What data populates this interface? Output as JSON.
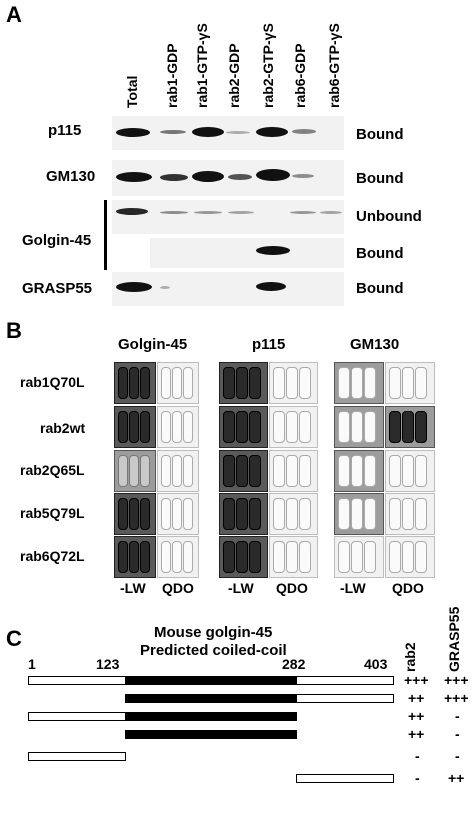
{
  "panel_a": {
    "letter": "A",
    "lanes": [
      "Total",
      "rab1-GDP",
      "rab1-GTP-γS",
      "rab2-GDP",
      "rab2-GTP-γS",
      "rab6-GDP",
      "rab6-GTP-γS"
    ],
    "rows": [
      {
        "protein": "p115",
        "fraction": "Bound"
      },
      {
        "protein": "GM130",
        "fraction": "Bound"
      },
      {
        "protein": "Golgin-45",
        "fraction": "Unbound"
      },
      {
        "protein": "",
        "fraction": "Bound"
      },
      {
        "protein": "GRASP55",
        "fraction": "Bound"
      }
    ]
  },
  "panel_b": {
    "letter": "B",
    "groups": [
      "Golgin-45",
      "p115",
      "GM130"
    ],
    "constructs": [
      "rab1Q70L",
      "rab2wt",
      "rab2Q65L",
      "rab5Q79L",
      "rab6Q72L"
    ],
    "media": [
      "-LW",
      "QDO"
    ]
  },
  "panel_c": {
    "letter": "C",
    "title_line1": "Mouse golgin-45",
    "title_line2": "Predicted coiled-coil",
    "positions": [
      "1",
      "123",
      "282",
      "403"
    ],
    "columns": [
      "rab2",
      "GRASP55"
    ],
    "constructs": [
      {
        "rab2": "+++",
        "grasp55": "+++"
      },
      {
        "rab2": "++",
        "grasp55": "+++"
      },
      {
        "rab2": "++",
        "grasp55": "-"
      },
      {
        "rab2": "++",
        "grasp55": "-"
      },
      {
        "rab2": "-",
        "grasp55": "-"
      },
      {
        "rab2": "-",
        "grasp55": "++"
      }
    ]
  }
}
